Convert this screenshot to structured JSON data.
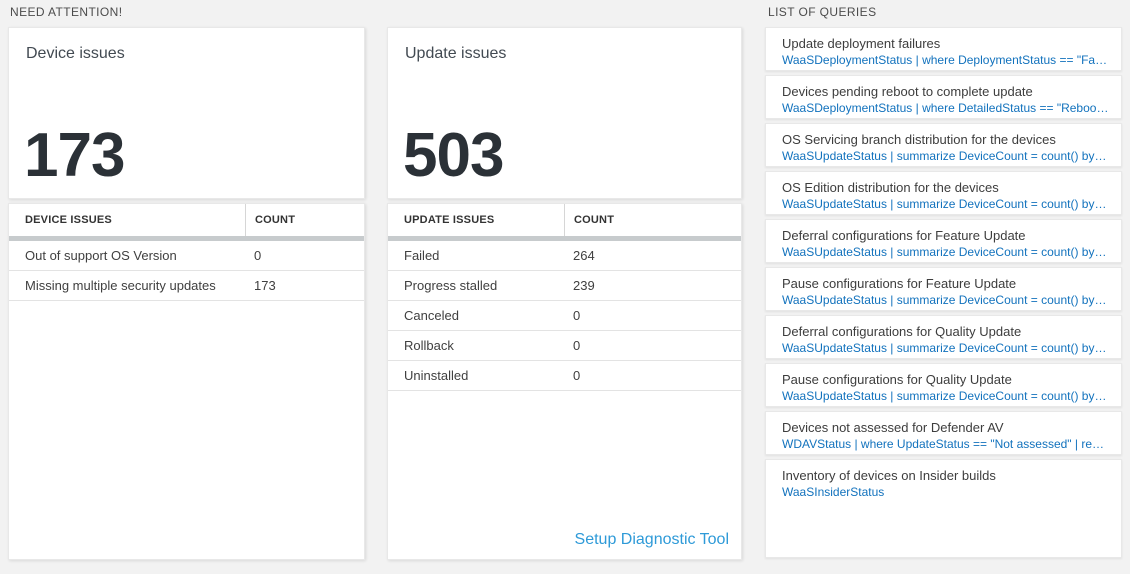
{
  "colors": {
    "query_link_blue": "#1272bd",
    "setup_link_blue": "#2e9ad8",
    "count_text": "#2b3137",
    "table_header_bar": "#c7cbcd",
    "page_background": "#f2f2f2"
  },
  "sections": {
    "need_attention_title": "NEED ATTENTION!",
    "queries_title": "LIST OF QUERIES"
  },
  "device_tile": {
    "title": "Device issues",
    "count": "173"
  },
  "device_table": {
    "col_issue": "DEVICE ISSUES",
    "col_count": "COUNT",
    "rows": [
      {
        "label": "Out of support OS Version",
        "count": "0"
      },
      {
        "label": "Missing multiple security updates",
        "count": "173"
      }
    ]
  },
  "update_tile": {
    "title": "Update issues",
    "count": "503"
  },
  "update_table": {
    "col_issue": "UPDATE ISSUES",
    "col_count": "COUNT",
    "rows": [
      {
        "label": "Failed",
        "count": "264"
      },
      {
        "label": "Progress stalled",
        "count": "239"
      },
      {
        "label": "Canceled",
        "count": "0"
      },
      {
        "label": "Rollback",
        "count": "0"
      },
      {
        "label": "Uninstalled",
        "count": "0"
      }
    ],
    "setup_link": "Setup Diagnostic Tool"
  },
  "query_list": {
    "items": [
      {
        "title": "Update deployment failures",
        "query": "WaaSDeploymentStatus | where DeploymentStatus == \"Failed\" |..."
      },
      {
        "title": "Devices pending reboot to complete update",
        "query": "WaaSDeploymentStatus | where DetailedStatus == \"Reboot pend..."
      },
      {
        "title": "OS Servicing branch distribution for the devices",
        "query": "WaaSUpdateStatus | summarize DeviceCount = count() by OSSer..."
      },
      {
        "title": "OS Edition distribution for the devices",
        "query": "WaaSUpdateStatus | summarize DeviceCount = count() by OSEdit..."
      },
      {
        "title": "Deferral configurations for Feature Update",
        "query": "WaaSUpdateStatus | summarize DeviceCount = count() by Featur..."
      },
      {
        "title": "Pause configurations for Feature Update",
        "query": "WaaSUpdateStatus | summarize DeviceCount = count() by Featur..."
      },
      {
        "title": "Deferral configurations for Quality Update",
        "query": "WaaSUpdateStatus | summarize DeviceCount = count() by Qualit..."
      },
      {
        "title": "Pause configurations for Quality Update",
        "query": "WaaSUpdateStatus | summarize DeviceCount = count() by Qualit..."
      },
      {
        "title": "Devices not assessed for Defender AV",
        "query": "WDAVStatus | where UpdateStatus == \"Not assessed\" | render ta..."
      },
      {
        "title": "Inventory of devices on Insider builds",
        "query": "WaaSInsiderStatus"
      }
    ]
  }
}
